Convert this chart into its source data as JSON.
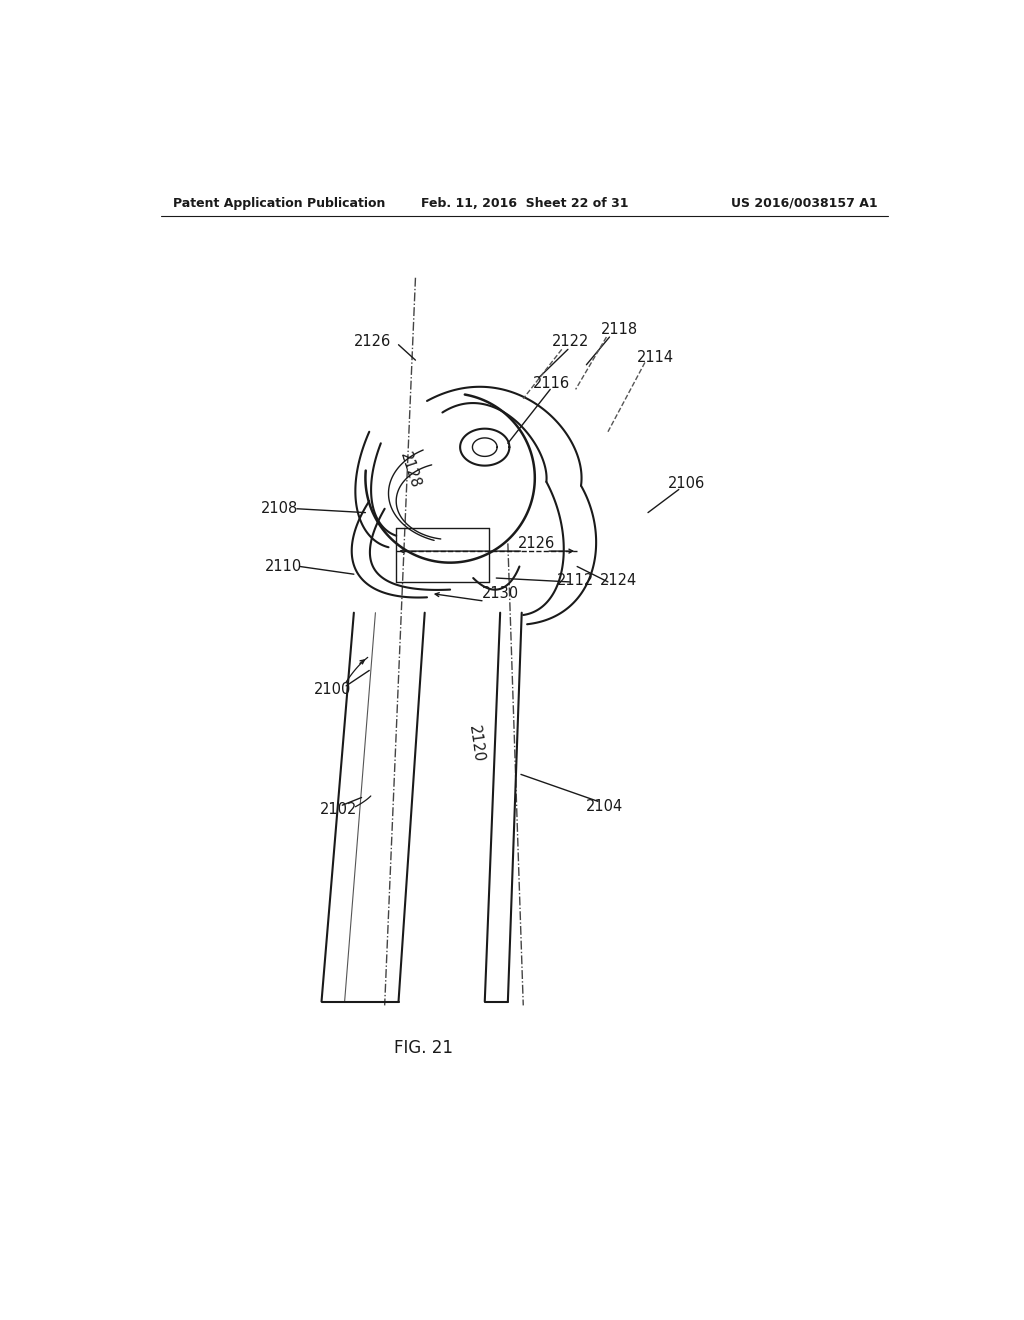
{
  "header_left": "Patent Application Publication",
  "header_mid": "Feb. 11, 2016  Sheet 22 of 31",
  "header_right": "US 2016/0038157 A1",
  "fig_label": "FIG. 21",
  "bg_color": "#ffffff",
  "line_color": "#1a1a1a",
  "label_fontsize": 10.5,
  "header_fontsize": 9
}
